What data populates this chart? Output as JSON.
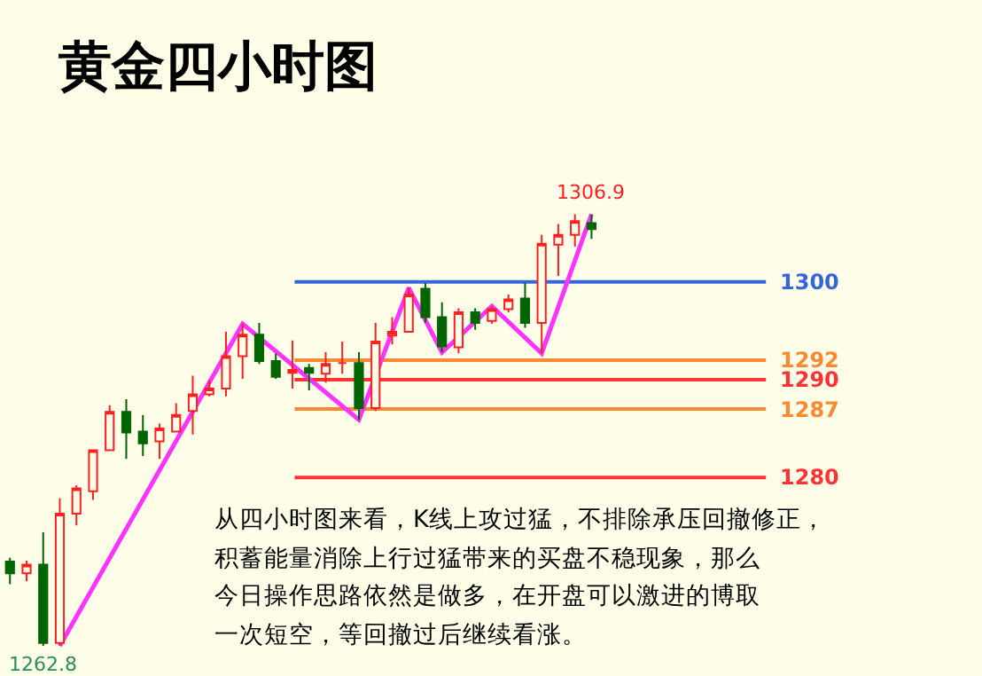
{
  "chart_data": {
    "type": "candlestick",
    "title": "黄金四小时图",
    "categories": [
      null,
      null,
      null,
      null,
      null,
      null,
      null,
      null,
      null,
      null,
      null,
      null,
      null,
      null,
      null,
      null,
      null,
      null,
      null,
      null,
      null,
      null,
      null,
      null,
      null,
      null,
      null,
      null,
      null,
      null,
      null,
      null,
      null,
      null,
      null,
      null
    ],
    "ohlc": [
      [
        1271.4,
        1271.8,
        1269.1,
        1270.2
      ],
      [
        1270.2,
        1271.5,
        1269.4,
        1271.1
      ],
      [
        1271.1,
        1274.4,
        1262.8,
        1263.1
      ],
      [
        1263.1,
        1277.9,
        1262.8,
        1276.3
      ],
      [
        1276.3,
        1279.2,
        1275.1,
        1278.9
      ],
      [
        1278.6,
        1282.8,
        1277.7,
        1282.8
      ],
      [
        1282.8,
        1287.4,
        1282.8,
        1286.7
      ],
      [
        1286.7,
        1288.0,
        1281.9,
        1284.6
      ],
      [
        1284.7,
        1286.4,
        1282.2,
        1283.5
      ],
      [
        1283.7,
        1285.5,
        1281.9,
        1285.0
      ],
      [
        1284.7,
        1287.6,
        1284.7,
        1286.4
      ],
      [
        1286.8,
        1290.4,
        1284.4,
        1288.5
      ],
      [
        1288.5,
        1289.9,
        1288.3,
        1289.1
      ],
      [
        1289.1,
        1294.9,
        1288.3,
        1292.4
      ],
      [
        1292.4,
        1295.7,
        1290.1,
        1294.6
      ],
      [
        1294.6,
        1295.8,
        1291.6,
        1291.9
      ],
      [
        1291.9,
        1292.7,
        1290.1,
        1290.3
      ],
      [
        1290.7,
        1294.0,
        1289.1,
        1291.0
      ],
      [
        1291.2,
        1291.6,
        1288.9,
        1290.7
      ],
      [
        1290.6,
        1292.8,
        1289.7,
        1291.6
      ],
      [
        1291.7,
        1293.9,
        1290.6,
        1291.7
      ],
      [
        1291.7,
        1292.8,
        1285.9,
        1287.1
      ],
      [
        1287.1,
        1295.8,
        1286.8,
        1293.9
      ],
      [
        1294.5,
        1296.4,
        1293.6,
        1294.9
      ],
      [
        1294.9,
        1299.4,
        1294.9,
        1298.7
      ],
      [
        1299.3,
        1299.9,
        1295.8,
        1296.4
      ],
      [
        1296.4,
        1297.9,
        1292.8,
        1293.4
      ],
      [
        1293.3,
        1297.3,
        1292.7,
        1296.9
      ],
      [
        1296.9,
        1297.3,
        1295.1,
        1295.8
      ],
      [
        1296.0,
        1297.5,
        1295.7,
        1297.2
      ],
      [
        1297.2,
        1298.7,
        1296.9,
        1298.2
      ],
      [
        1298.3,
        1299.9,
        1295.3,
        1295.8
      ],
      [
        1295.8,
        1304.8,
        1292.7,
        1303.9
      ],
      [
        1303.8,
        1305.9,
        1300.6,
        1304.8
      ],
      [
        1304.8,
        1306.9,
        1303.6,
        1306.2
      ],
      [
        1306.0,
        1306.9,
        1304.4,
        1305.4
      ]
    ],
    "series": [
      {
        "type": "line",
        "color": "#ff33ff",
        "values": [
          null,
          null,
          null,
          1262.8,
          null,
          null,
          null,
          null,
          null,
          null,
          null,
          null,
          null,
          null,
          1295.7,
          null,
          null,
          null,
          null,
          null,
          null,
          1285.9,
          null,
          null,
          1299.4,
          null,
          1292.8,
          null,
          null,
          1297.5,
          null,
          null,
          1292.7,
          null,
          null,
          1306.9
        ]
      }
    ],
    "ref_lines": [
      {
        "axis": "y",
        "value": 1300,
        "label": "1300",
        "color": "#3366dd"
      },
      {
        "axis": "y",
        "value": 1292,
        "label": "1292",
        "color": "#ff8833"
      },
      {
        "axis": "y",
        "value": 1290,
        "label": "1290",
        "color": "#ff3333"
      },
      {
        "axis": "y",
        "value": 1287,
        "label": "1287",
        "color": "#ff8833"
      },
      {
        "axis": "y",
        "value": 1280,
        "label": "1280",
        "color": "#ff3333"
      }
    ],
    "annotations": [
      {
        "text": "1306.9",
        "y": 1306.9
      },
      {
        "text": "1262.8",
        "y": 1262.8
      },
      "从四小时图来看，K线上攻过猛，不排除承压回撤修正，",
      "积蓄能量消除上行过猛带来的买盘不稳现象，那么",
      "今日操作思路依然是做多，在开盘可以激进的博取",
      "一次短空，等回撤过后继续看涨。"
    ],
    "marker": "none"
  }
}
